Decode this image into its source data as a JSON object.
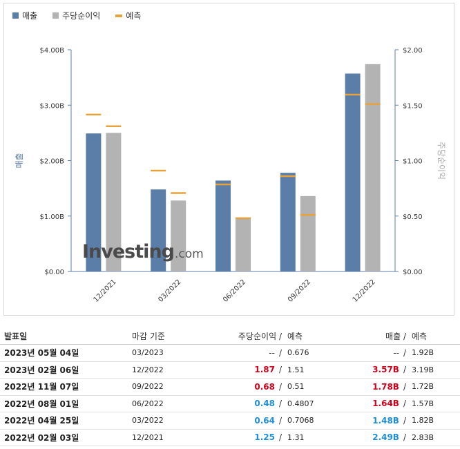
{
  "legend": [
    {
      "label": "매출",
      "color": "#5b7ea9",
      "kind": "box"
    },
    {
      "label": "주당순이익",
      "color": "#b3b3b3",
      "kind": "box"
    },
    {
      "label": "예측",
      "color": "#e8a23a",
      "kind": "line"
    }
  ],
  "chart_data": {
    "type": "bar",
    "categories": [
      "12/2021",
      "03/2022",
      "06/2022",
      "09/2022",
      "12/2022"
    ],
    "ylabel": "매출",
    "y2label": "주당순이익",
    "ylim": [
      0,
      4.0
    ],
    "y2lim": [
      0,
      2.0
    ],
    "yticks": [
      "$0.00",
      "$1.00B",
      "$2.00B",
      "$3.00B",
      "$4.00B"
    ],
    "y2ticks": [
      "$0.00",
      "$0.50",
      "$1.00",
      "$1.50",
      "$2.00"
    ],
    "series": [
      {
        "name": "매출",
        "axis": "left",
        "values": [
          2.49,
          1.48,
          1.64,
          1.78,
          3.57
        ],
        "forecast": [
          2.83,
          1.82,
          1.57,
          1.72,
          3.19
        ],
        "color": "#5b7ea9"
      },
      {
        "name": "주당순이익",
        "axis": "right",
        "values": [
          1.25,
          0.64,
          0.48,
          0.68,
          1.87
        ],
        "forecast": [
          1.31,
          0.7068,
          0.4807,
          0.51,
          1.51
        ],
        "color": "#b3b3b3"
      }
    ],
    "forecast_color": "#e8a23a",
    "watermark": {
      "main": "Investing",
      "suffix": ".com"
    }
  },
  "table": {
    "headers": {
      "date": "발표일",
      "period": "마감 기준",
      "eps": "주당순이익",
      "eps_fc": "예측",
      "rev": "매출",
      "rev_fc": "예측",
      "sep": "/"
    },
    "rows": [
      {
        "date": "2023년 05월 04일",
        "period": "03/2023",
        "eps": "--",
        "eps_fc": "0.676",
        "rev": "--",
        "rev_fc": "1.92B",
        "eps_cls": "neutral",
        "rev_cls": "neutral"
      },
      {
        "date": "2023년 02월 06일",
        "period": "12/2022",
        "eps": "1.87",
        "eps_fc": "1.51",
        "rev": "3.57B",
        "rev_fc": "3.19B",
        "eps_cls": "red",
        "rev_cls": "red"
      },
      {
        "date": "2022년 11월 07일",
        "period": "09/2022",
        "eps": "0.68",
        "eps_fc": "0.51",
        "rev": "1.78B",
        "rev_fc": "1.72B",
        "eps_cls": "red",
        "rev_cls": "red"
      },
      {
        "date": "2022년 08월 01일",
        "period": "06/2022",
        "eps": "0.48",
        "eps_fc": "0.4807",
        "rev": "1.64B",
        "rev_fc": "1.57B",
        "eps_cls": "blue",
        "rev_cls": "red"
      },
      {
        "date": "2022년 04월 25일",
        "period": "03/2022",
        "eps": "0.64",
        "eps_fc": "0.7068",
        "rev": "1.48B",
        "rev_fc": "1.82B",
        "eps_cls": "blue",
        "rev_cls": "blue"
      },
      {
        "date": "2022년 02월 03일",
        "period": "12/2021",
        "eps": "1.25",
        "eps_fc": "1.31",
        "rev": "2.49B",
        "rev_fc": "2.83B",
        "eps_cls": "blue",
        "rev_cls": "blue"
      }
    ]
  }
}
